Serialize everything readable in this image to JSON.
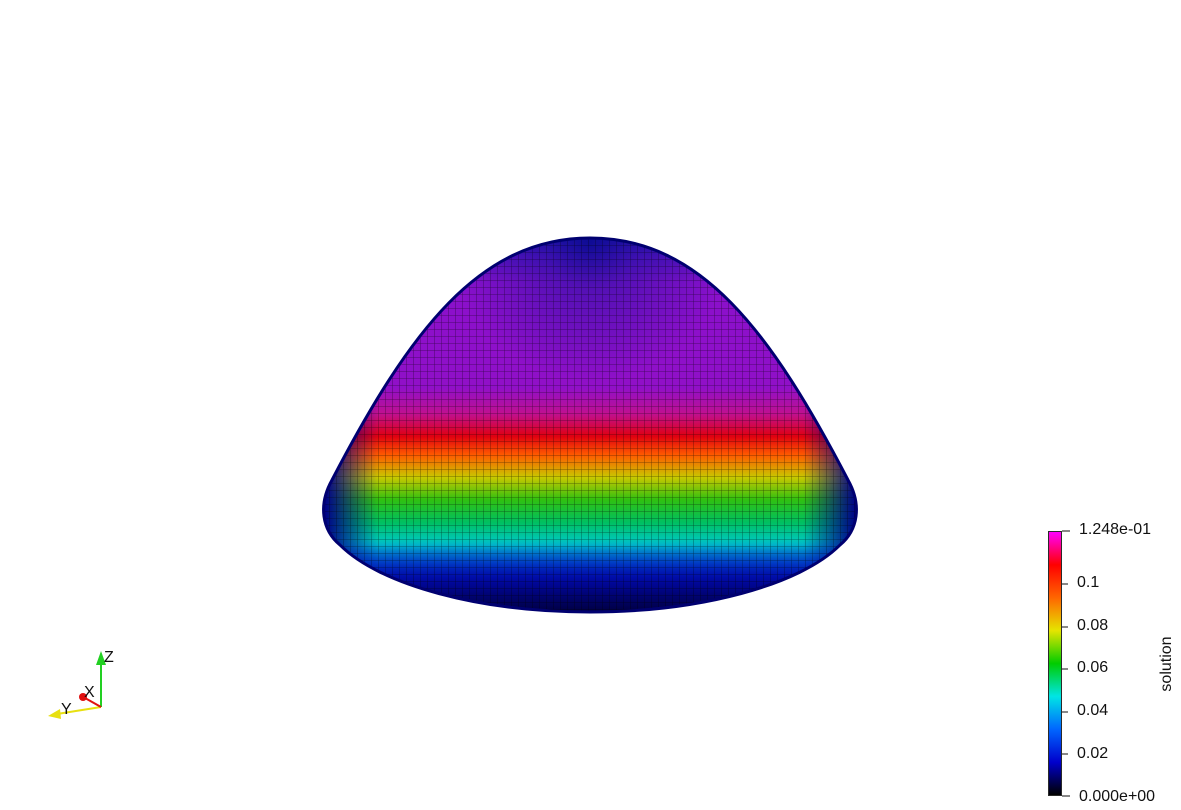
{
  "scalar_bar": {
    "title": "solution",
    "ticks": [
      "1.248e-01",
      "0.1",
      "0.08",
      "0.06",
      "0.04",
      "0.02",
      "0.000e+00"
    ],
    "range": [
      0.0,
      0.1248
    ]
  },
  "axes_widget": {
    "x_label": "X",
    "y_label": "Y",
    "z_label": "Z",
    "x_color": "#e01010",
    "y_color": "#e8e010",
    "z_color": "#22d022"
  },
  "colormap": {
    "name": "rainbow",
    "stops": [
      "#000000",
      "#0000cc",
      "#0066ff",
      "#00e5e5",
      "#00cc00",
      "#e5e500",
      "#ff6600",
      "#ff0000",
      "#ff00ff"
    ]
  },
  "surface": {
    "background": "#ffffff"
  }
}
